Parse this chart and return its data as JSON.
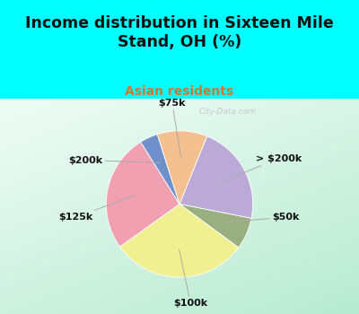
{
  "title": "Income distribution in Sixteen Mile\nStand, OH (%)",
  "subtitle": "Asian residents",
  "title_color": "#111111",
  "subtitle_color": "#cc7733",
  "bg_cyan": "#00ffff",
  "watermark": "City-Data.com",
  "labels": [
    "> $200k",
    "$50k",
    "$100k",
    "$125k",
    "$200k",
    "$75k"
  ],
  "sizes": [
    22,
    7,
    30,
    26,
    4,
    11
  ],
  "colors": [
    "#bbaad8",
    "#9aaf80",
    "#f0f090",
    "#f0a0b0",
    "#7090cc",
    "#f5c090"
  ],
  "startangle": 68,
  "title_fontsize": 12.5,
  "subtitle_fontsize": 10,
  "label_fontsize": 8
}
